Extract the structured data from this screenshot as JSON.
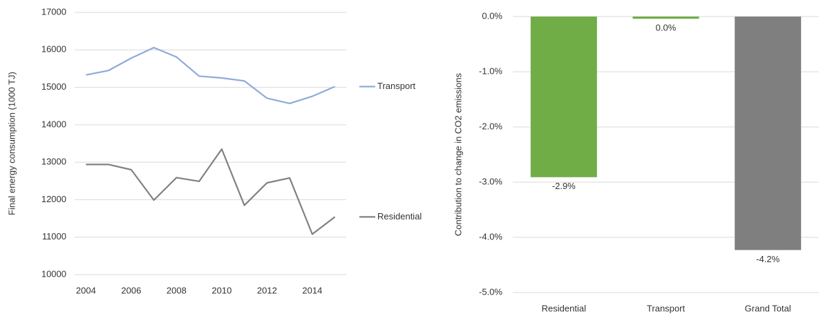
{
  "chart_data": [
    {
      "type": "line",
      "y_label": "Final energy consumption (1000 TJ)",
      "x": [
        2004,
        2005,
        2006,
        2007,
        2008,
        2009,
        2010,
        2011,
        2012,
        2013,
        2014,
        2015
      ],
      "xlim": [
        2003.5,
        2015.5
      ],
      "xticks": [
        2004,
        2006,
        2008,
        2010,
        2012,
        2014
      ],
      "ylim": [
        10000,
        17000
      ],
      "yticks": [
        10000,
        11000,
        12000,
        13000,
        14000,
        15000,
        16000,
        17000
      ],
      "grid": true,
      "legend": "line-end",
      "series": [
        {
          "name": "Transport",
          "color": "#8eaadb",
          "values": [
            15330,
            15450,
            15780,
            16060,
            15810,
            15300,
            15250,
            15170,
            14710,
            14570,
            14760,
            15020
          ]
        },
        {
          "name": "Residential",
          "color": "#808080",
          "values": [
            12940,
            12940,
            12800,
            11990,
            12590,
            12490,
            13350,
            11850,
            12450,
            12580,
            11080,
            11540
          ]
        }
      ]
    },
    {
      "type": "bar",
      "y_label": "Contribution to change in CO2 emissions",
      "categories": [
        "Residential",
        "Transport",
        "Grand Total"
      ],
      "values": [
        -2.91,
        -0.04,
        -4.23
      ],
      "value_labels": [
        "-2.9%",
        "0.0%",
        "-4.2%"
      ],
      "colors": [
        "#70ad47",
        "#70ad47",
        "#7f7f7f"
      ],
      "ylim": [
        -5,
        0
      ],
      "yticks": [
        {
          "value": -5,
          "label": "-5.0%"
        },
        {
          "value": -4,
          "label": "-4.0%"
        },
        {
          "value": -3,
          "label": "-3.0%"
        },
        {
          "value": -2,
          "label": "-2.0%"
        },
        {
          "value": -1,
          "label": "-1.0%"
        },
        {
          "value": 0,
          "label": "0.0%"
        }
      ],
      "grid": true
    }
  ]
}
